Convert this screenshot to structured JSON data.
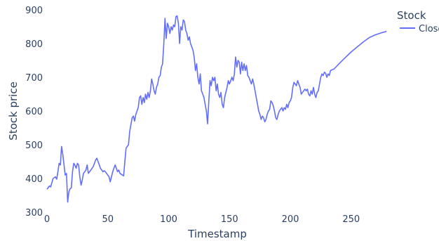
{
  "chart_data": {
    "type": "line",
    "xlabel": "Timestamp",
    "ylabel": "Stock price",
    "xlim": [
      0,
      283
    ],
    "ylim": [
      300,
      900
    ],
    "x_ticks": [
      0,
      50,
      100,
      150,
      200,
      250
    ],
    "y_ticks": [
      300,
      400,
      500,
      600,
      700,
      800,
      900
    ],
    "grid": false,
    "legend": {
      "title": "Stock",
      "position": "top-right"
    },
    "series": [
      {
        "name": "Close",
        "color": "#636efa",
        "points": [
          [
            0,
            368
          ],
          [
            2,
            378
          ],
          [
            3,
            375
          ],
          [
            5,
            400
          ],
          [
            7,
            405
          ],
          [
            8,
            398
          ],
          [
            9,
            420
          ],
          [
            10,
            445
          ],
          [
            11,
            440
          ],
          [
            12,
            495
          ],
          [
            13,
            470
          ],
          [
            14,
            440
          ],
          [
            15,
            410
          ],
          [
            16,
            415
          ],
          [
            17,
            330
          ],
          [
            18,
            360
          ],
          [
            19,
            370
          ],
          [
            20,
            372
          ],
          [
            21,
            420
          ],
          [
            22,
            445
          ],
          [
            23,
            440
          ],
          [
            24,
            430
          ],
          [
            25,
            445
          ],
          [
            26,
            440
          ],
          [
            27,
            405
          ],
          [
            28,
            380
          ],
          [
            29,
            395
          ],
          [
            30,
            415
          ],
          [
            31,
            420
          ],
          [
            32,
            425
          ],
          [
            33,
            440
          ],
          [
            34,
            415
          ],
          [
            35,
            420
          ],
          [
            36,
            425
          ],
          [
            37,
            430
          ],
          [
            38,
            435
          ],
          [
            39,
            445
          ],
          [
            40,
            455
          ],
          [
            41,
            460
          ],
          [
            42,
            450
          ],
          [
            43,
            440
          ],
          [
            44,
            430
          ],
          [
            45,
            425
          ],
          [
            46,
            420
          ],
          [
            47,
            423
          ],
          [
            48,
            420
          ],
          [
            49,
            415
          ],
          [
            50,
            410
          ],
          [
            51,
            405
          ],
          [
            52,
            390
          ],
          [
            53,
            405
          ],
          [
            54,
            420
          ],
          [
            55,
            430
          ],
          [
            56,
            440
          ],
          [
            57,
            430
          ],
          [
            58,
            420
          ],
          [
            59,
            425
          ],
          [
            60,
            415
          ],
          [
            62,
            410
          ],
          [
            63,
            408
          ],
          [
            64,
            450
          ],
          [
            65,
            490
          ],
          [
            66,
            495
          ],
          [
            67,
            500
          ],
          [
            68,
            540
          ],
          [
            69,
            560
          ],
          [
            70,
            580
          ],
          [
            71,
            585
          ],
          [
            72,
            570
          ],
          [
            73,
            590
          ],
          [
            74,
            600
          ],
          [
            75,
            610
          ],
          [
            76,
            640
          ],
          [
            77,
            645
          ],
          [
            78,
            620
          ],
          [
            79,
            640
          ],
          [
            80,
            625
          ],
          [
            81,
            650
          ],
          [
            82,
            635
          ],
          [
            83,
            655
          ],
          [
            84,
            640
          ],
          [
            85,
            660
          ],
          [
            86,
            695
          ],
          [
            87,
            680
          ],
          [
            88,
            660
          ],
          [
            89,
            650
          ],
          [
            90,
            670
          ],
          [
            91,
            680
          ],
          [
            92,
            700
          ],
          [
            93,
            705
          ],
          [
            94,
            730
          ],
          [
            95,
            740
          ],
          [
            96,
            800
          ],
          [
            97,
            875
          ],
          [
            98,
            815
          ],
          [
            99,
            860
          ],
          [
            100,
            850
          ],
          [
            101,
            830
          ],
          [
            102,
            850
          ],
          [
            103,
            840
          ],
          [
            104,
            855
          ],
          [
            105,
            850
          ],
          [
            106,
            880
          ],
          [
            107,
            882
          ],
          [
            108,
            860
          ],
          [
            109,
            800
          ],
          [
            110,
            850
          ],
          [
            111,
            840
          ],
          [
            112,
            870
          ],
          [
            113,
            865
          ],
          [
            114,
            840
          ],
          [
            115,
            830
          ],
          [
            116,
            810
          ],
          [
            117,
            820
          ],
          [
            118,
            800
          ],
          [
            119,
            790
          ],
          [
            120,
            780
          ],
          [
            121,
            760
          ],
          [
            122,
            720
          ],
          [
            123,
            740
          ],
          [
            124,
            700
          ],
          [
            125,
            680
          ],
          [
            126,
            710
          ],
          [
            127,
            660
          ],
          [
            128,
            650
          ],
          [
            129,
            640
          ],
          [
            130,
            620
          ],
          [
            131,
            600
          ],
          [
            132,
            562
          ],
          [
            133,
            630
          ],
          [
            134,
            690
          ],
          [
            135,
            675
          ],
          [
            136,
            700
          ],
          [
            137,
            690
          ],
          [
            138,
            700
          ],
          [
            139,
            660
          ],
          [
            140,
            680
          ],
          [
            141,
            650
          ],
          [
            142,
            640
          ],
          [
            143,
            655
          ],
          [
            144,
            620
          ],
          [
            145,
            610
          ],
          [
            146,
            640
          ],
          [
            147,
            655
          ],
          [
            148,
            670
          ],
          [
            149,
            690
          ],
          [
            150,
            680
          ],
          [
            151,
            690
          ],
          [
            152,
            700
          ],
          [
            153,
            690
          ],
          [
            154,
            710
          ],
          [
            155,
            760
          ],
          [
            156,
            730
          ],
          [
            157,
            750
          ],
          [
            158,
            745
          ],
          [
            159,
            710
          ],
          [
            160,
            745
          ],
          [
            161,
            720
          ],
          [
            162,
            740
          ],
          [
            163,
            720
          ],
          [
            164,
            735
          ],
          [
            165,
            705
          ],
          [
            166,
            700
          ],
          [
            167,
            690
          ],
          [
            168,
            680
          ],
          [
            169,
            695
          ],
          [
            170,
            680
          ],
          [
            171,
            660
          ],
          [
            172,
            640
          ],
          [
            173,
            620
          ],
          [
            174,
            600
          ],
          [
            175,
            590
          ],
          [
            176,
            575
          ],
          [
            177,
            585
          ],
          [
            178,
            580
          ],
          [
            179,
            568
          ],
          [
            180,
            575
          ],
          [
            181,
            590
          ],
          [
            182,
            600
          ],
          [
            183,
            605
          ],
          [
            184,
            630
          ],
          [
            185,
            625
          ],
          [
            186,
            615
          ],
          [
            187,
            600
          ],
          [
            188,
            580
          ],
          [
            189,
            575
          ],
          [
            190,
            590
          ],
          [
            191,
            600
          ],
          [
            192,
            605
          ],
          [
            193,
            610
          ],
          [
            194,
            600
          ],
          [
            195,
            610
          ],
          [
            196,
            605
          ],
          [
            197,
            620
          ],
          [
            198,
            610
          ],
          [
            199,
            625
          ],
          [
            200,
            630
          ],
          [
            201,
            640
          ],
          [
            202,
            670
          ],
          [
            203,
            685
          ],
          [
            204,
            680
          ],
          [
            205,
            675
          ],
          [
            206,
            690
          ],
          [
            207,
            680
          ],
          [
            208,
            670
          ],
          [
            209,
            650
          ],
          [
            210,
            655
          ],
          [
            211,
            660
          ],
          [
            212,
            665
          ],
          [
            213,
            660
          ],
          [
            214,
            665
          ],
          [
            215,
            650
          ],
          [
            216,
            645
          ],
          [
            217,
            660
          ],
          [
            218,
            650
          ],
          [
            219,
            670
          ],
          [
            220,
            650
          ],
          [
            221,
            640
          ],
          [
            222,
            655
          ],
          [
            223,
            660
          ],
          [
            224,
            680
          ],
          [
            225,
            700
          ],
          [
            226,
            710
          ],
          [
            227,
            705
          ],
          [
            228,
            715
          ],
          [
            229,
            712
          ],
          [
            230,
            700
          ],
          [
            231,
            710
          ],
          [
            232,
            705
          ],
          [
            233,
            720
          ],
          [
            236,
            725
          ],
          [
            240,
            740
          ],
          [
            245,
            758
          ],
          [
            250,
            775
          ],
          [
            255,
            790
          ],
          [
            260,
            805
          ],
          [
            265,
            818
          ],
          [
            270,
            826
          ],
          [
            275,
            832
          ],
          [
            279,
            836
          ]
        ]
      }
    ]
  }
}
